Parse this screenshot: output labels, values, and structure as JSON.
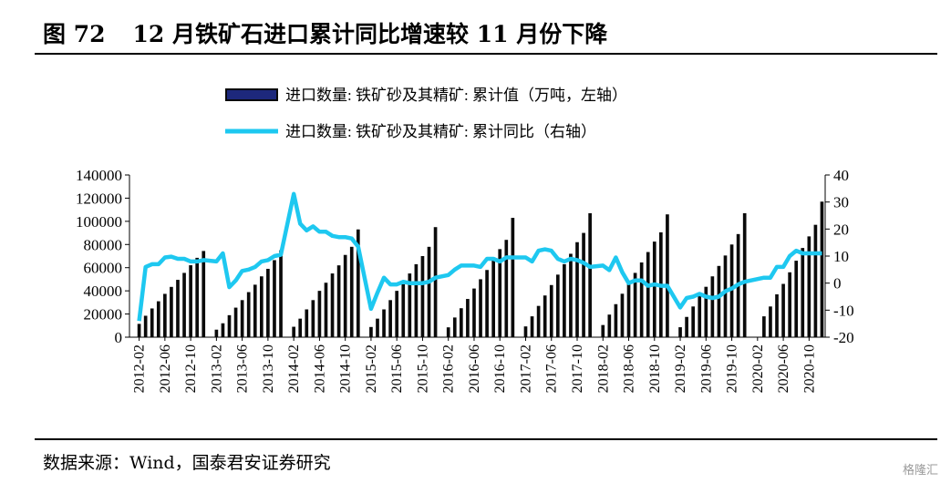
{
  "figure": {
    "number": "图 72",
    "title": "12 月铁矿石进口累计同比增速较 11 月份下降",
    "source": "数据来源：Wind，国泰君安证券研究",
    "watermark": "格隆汇"
  },
  "chart_data": {
    "type": "bar+line",
    "title": "",
    "legend": [
      "进口数量: 铁矿砂及其精矿: 累计值（万吨，左轴）",
      "进口数量: 铁矿砂及其精矿: 累计同比（右轴）"
    ],
    "legend_placement": "top",
    "y_left": {
      "min": 0,
      "max": 140000,
      "ticks": [
        0,
        20000,
        40000,
        60000,
        80000,
        100000,
        120000,
        140000
      ]
    },
    "y_right": {
      "min": -20,
      "max": 40,
      "ticks": [
        -20,
        -10,
        0,
        10,
        20,
        30,
        40
      ]
    },
    "x_tick_labels": [
      "2012-02",
      "2012-06",
      "2012-10",
      "2013-02",
      "2013-06",
      "2013-10",
      "2014-02",
      "2014-06",
      "2014-10",
      "2015-02",
      "2015-06",
      "2015-10",
      "2016-02",
      "2016-06",
      "2016-10",
      "2017-02",
      "2017-06",
      "2017-10",
      "2018-02",
      "2018-06",
      "2018-10",
      "2019-02",
      "2019-06",
      "2019-10",
      "2020-02",
      "2020-06",
      "2020-10"
    ],
    "grid": false,
    "colors": {
      "bars": "#0a0a0a",
      "bar_highlight": "#2a3cc8",
      "line": "#1ec8f0"
    },
    "x": [
      "2012-01",
      "2012-02",
      "2012-03",
      "2012-04",
      "2012-05",
      "2012-06",
      "2012-07",
      "2012-08",
      "2012-09",
      "2012-10",
      "2012-11",
      "2012-12",
      "2013-01",
      "2013-02",
      "2013-03",
      "2013-04",
      "2013-05",
      "2013-06",
      "2013-07",
      "2013-08",
      "2013-09",
      "2013-10",
      "2013-11",
      "2013-12",
      "2014-01",
      "2014-02",
      "2014-03",
      "2014-04",
      "2014-05",
      "2014-06",
      "2014-07",
      "2014-08",
      "2014-09",
      "2014-10",
      "2014-11",
      "2014-12",
      "2015-01",
      "2015-02",
      "2015-03",
      "2015-04",
      "2015-05",
      "2015-06",
      "2015-07",
      "2015-08",
      "2015-09",
      "2015-10",
      "2015-11",
      "2015-12",
      "2016-01",
      "2016-02",
      "2016-03",
      "2016-04",
      "2016-05",
      "2016-06",
      "2016-07",
      "2016-08",
      "2016-09",
      "2016-10",
      "2016-11",
      "2016-12",
      "2017-01",
      "2017-02",
      "2017-03",
      "2017-04",
      "2017-05",
      "2017-06",
      "2017-07",
      "2017-08",
      "2017-09",
      "2017-10",
      "2017-11",
      "2017-12",
      "2018-01",
      "2018-02",
      "2018-03",
      "2018-04",
      "2018-05",
      "2018-06",
      "2018-07",
      "2018-08",
      "2018-09",
      "2018-10",
      "2018-11",
      "2018-12",
      "2019-01",
      "2019-02",
      "2019-03",
      "2019-04",
      "2019-05",
      "2019-06",
      "2019-07",
      "2019-08",
      "2019-09",
      "2019-10",
      "2019-11",
      "2019-12",
      "2020-01",
      "2020-02",
      "2020-03",
      "2020-04",
      "2020-05",
      "2020-06",
      "2020-07",
      "2020-08",
      "2020-09",
      "2020-10",
      "2020-11",
      "2020-12"
    ],
    "series": [
      {
        "name": "进口数量: 铁矿砂及其精矿: 累计值（万吨，左轴）",
        "axis": "left",
        "type": "bar",
        "values": [
          null,
          11500,
          18500,
          24800,
          31000,
          37400,
          43400,
          49500,
          55500,
          62100,
          68500,
          74400,
          null,
          6500,
          12000,
          19000,
          25500,
          32000,
          38900,
          45300,
          52500,
          59000,
          66500,
          75000,
          null,
          9000,
          16000,
          24000,
          32000,
          40000,
          47000,
          55000,
          62000,
          71000,
          78000,
          93000,
          null,
          8800,
          16000,
          24000,
          32000,
          40000,
          48000,
          55000,
          63000,
          70000,
          78000,
          95000,
          null,
          8500,
          17000,
          25000,
          33000,
          42000,
          50000,
          58000,
          67000,
          76000,
          84000,
          103000,
          null,
          9300,
          18000,
          27000,
          36000,
          45000,
          54000,
          63000,
          72000,
          82000,
          90000,
          107000,
          null,
          10500,
          19500,
          28500,
          37500,
          46500,
          55500,
          64500,
          73500,
          82500,
          90500,
          106000,
          null,
          8600,
          17500,
          26500,
          35500,
          43500,
          52500,
          61500,
          70500,
          80000,
          89000,
          107000,
          null,
          null,
          18000,
          26500,
          37000,
          46000,
          56000,
          66000,
          77000,
          87000,
          97000,
          117000
        ]
      },
      {
        "name": "进口数量: 铁矿砂及其精矿: 累计同比（右轴）",
        "axis": "right",
        "type": "line",
        "values": [
          null,
          -14,
          6,
          7,
          7,
          9.5,
          9.8,
          9,
          9,
          8,
          8,
          8.5,
          null,
          8,
          11,
          -1.5,
          1,
          4.5,
          5,
          6,
          8,
          8.5,
          10,
          10.5,
          null,
          33,
          22,
          19.5,
          21,
          19,
          19,
          17.5,
          17,
          17,
          16.5,
          13.5,
          null,
          -9.5,
          -3.5,
          2,
          -0.5,
          -0.5,
          0.5,
          0,
          0,
          0,
          0.5,
          2,
          null,
          3,
          5,
          6.5,
          6.5,
          6.5,
          6,
          9,
          9,
          8,
          9.5,
          9.5,
          null,
          9.5,
          8,
          12,
          12.5,
          12,
          9,
          8,
          9,
          8.5,
          7.5,
          6,
          null,
          6.5,
          4.8,
          9.5,
          4,
          0,
          1,
          1,
          -1,
          -0.5,
          -1,
          -1,
          null,
          -9,
          -5.5,
          -5,
          -4,
          -5,
          -5.5,
          -5,
          -3,
          -2,
          -0.5,
          0.5,
          null,
          null,
          2,
          2,
          6,
          6,
          10,
          12,
          11,
          11,
          11,
          11
        ]
      }
    ]
  }
}
